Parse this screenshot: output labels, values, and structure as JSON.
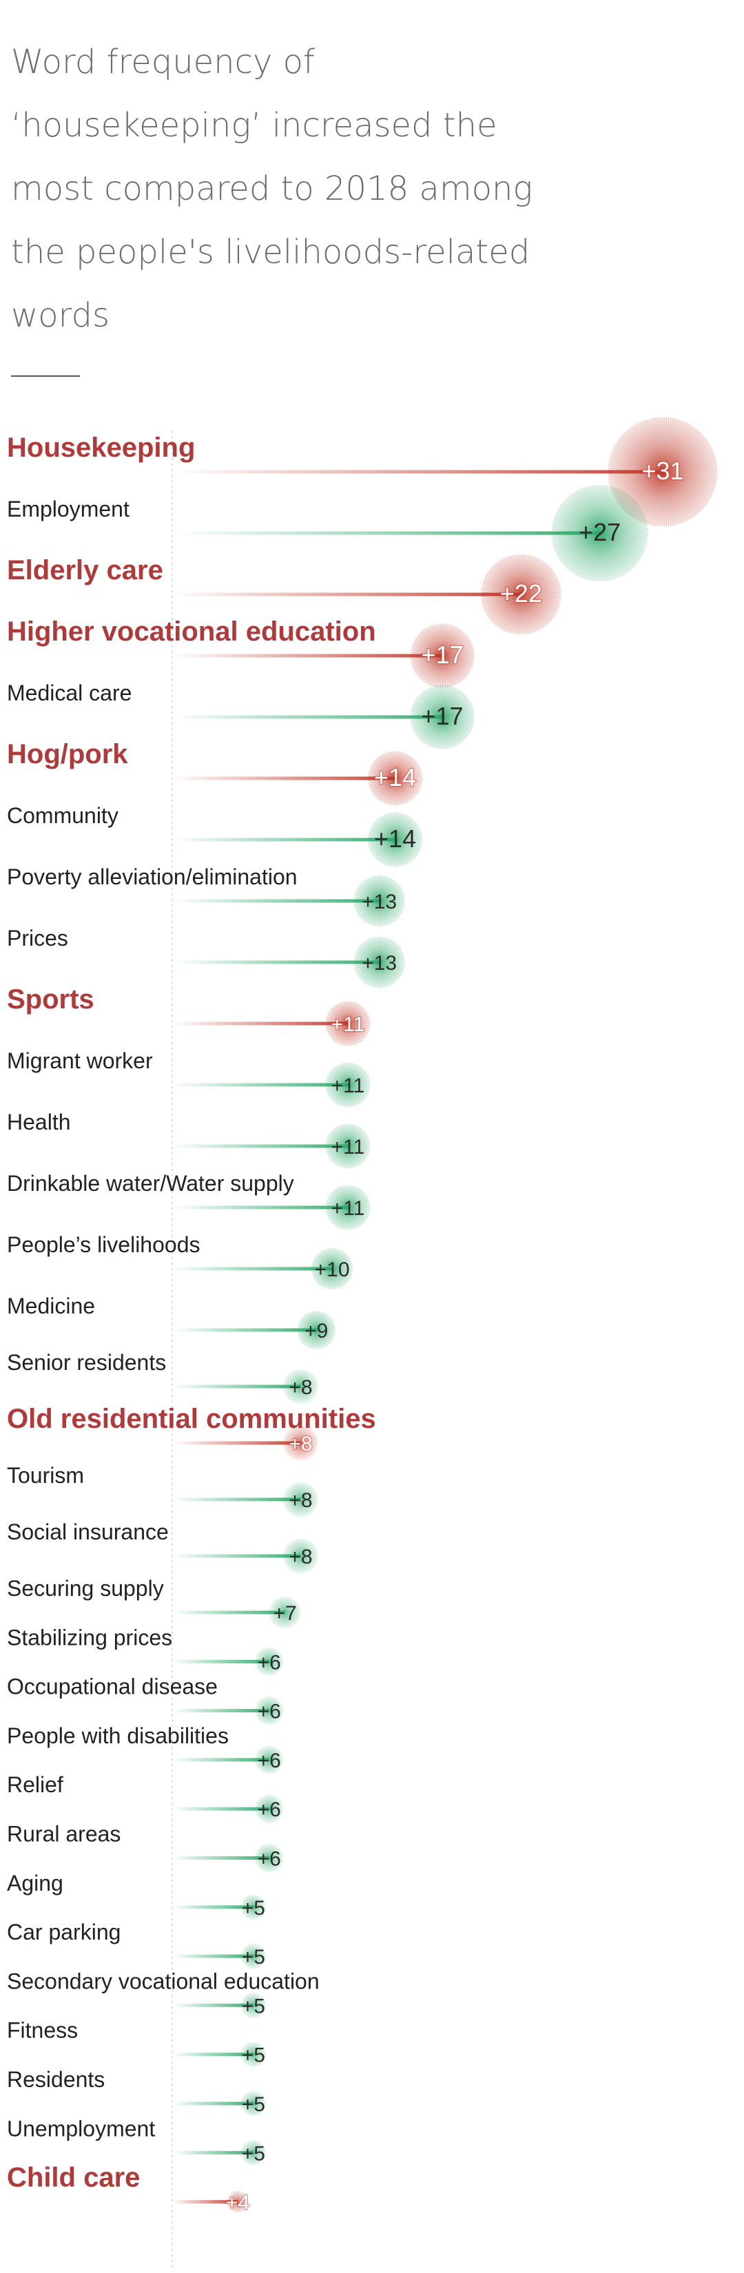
{
  "title": "Word frequency of ‘housekeeping’ increased the most compared to 2018 among the people's livelihoods-related words",
  "colors": {
    "highlight": "#c0392b",
    "normal": "#2ea86a",
    "label_normal": "#222222",
    "label_highlight": "#b03a3a"
  },
  "chart_data": {
    "type": "bar",
    "categories": [
      "Housekeeping",
      "Employment",
      "Elderly care",
      "Higher vocational education",
      "Medical care",
      "Hog/pork",
      "Community",
      "Poverty alleviation/elimination",
      "Prices",
      "Sports",
      "Migrant worker",
      "Health",
      "Drinkable water/Water supply",
      "People’s livelihoods",
      "Medicine",
      "Senior residents",
      "Old residential communities",
      "Tourism",
      "Social insurance",
      "Securing supply",
      "Stabilizing prices",
      "Occupational disease",
      "People with disabilities",
      "Relief",
      "Rural areas",
      "Aging",
      "Car parking",
      "Secondary vocational education",
      "Fitness",
      "Residents",
      "Unemployment",
      "Child care"
    ],
    "values": [
      31,
      27,
      22,
      17,
      17,
      14,
      14,
      13,
      13,
      11,
      11,
      11,
      11,
      10,
      9,
      8,
      8,
      8,
      8,
      7,
      6,
      6,
      6,
      6,
      6,
      5,
      5,
      5,
      5,
      5,
      5,
      4
    ],
    "value_labels": [
      "+31",
      "+27",
      "+22",
      "+17",
      "+17",
      "+14",
      "+14",
      "+13",
      "+13",
      "+11",
      "+11",
      "+11",
      "+11",
      "+10",
      "+9",
      "+8",
      "+8",
      "+8",
      "+8",
      "+7",
      "+6",
      "+6",
      "+6",
      "+6",
      "+6",
      "+5",
      "+5",
      "+5",
      "+5",
      "+5",
      "+5",
      "+4"
    ],
    "highlighted": [
      "Housekeeping",
      "Elderly care",
      "Higher vocational education",
      "Hog/pork",
      "Sports",
      "Old residential communities",
      "Child care"
    ],
    "orientation": "horizontal",
    "grid": false,
    "legend": "none"
  }
}
